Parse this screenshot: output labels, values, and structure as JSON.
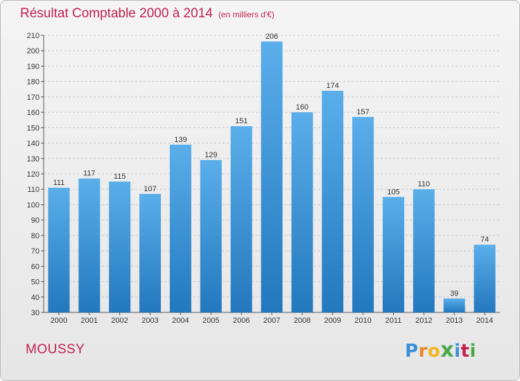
{
  "header": {
    "title": "Résultat Comptable 2000 à 2014",
    "subtitle": "(en milliers d'€)"
  },
  "footer": {
    "town": "MOUSSY",
    "logo_letters": [
      "P",
      "r",
      "o",
      "x",
      "i",
      "t",
      "i"
    ]
  },
  "colors": {
    "title": "#c3214f",
    "bar_top": "#5aaeea",
    "bar_bottom": "#2378be",
    "grid": "#c9c9c9"
  },
  "chart_data": {
    "type": "bar",
    "title": "Résultat Comptable 2000 à 2014",
    "subtitle": "(en milliers d'€)",
    "categories": [
      "2000",
      "2001",
      "2002",
      "2003",
      "2004",
      "2005",
      "2006",
      "2007",
      "2008",
      "2009",
      "2010",
      "2011",
      "2012",
      "2013",
      "2014"
    ],
    "values": [
      111,
      117,
      115,
      107,
      139,
      129,
      151,
      206,
      160,
      174,
      157,
      105,
      110,
      39,
      74
    ],
    "ylim": [
      30,
      210
    ],
    "yticks": [
      30,
      40,
      50,
      60,
      70,
      80,
      90,
      100,
      110,
      120,
      130,
      140,
      150,
      160,
      170,
      180,
      190,
      200,
      210
    ],
    "grid": true,
    "data_labels": true,
    "xlabel": "",
    "ylabel": ""
  }
}
